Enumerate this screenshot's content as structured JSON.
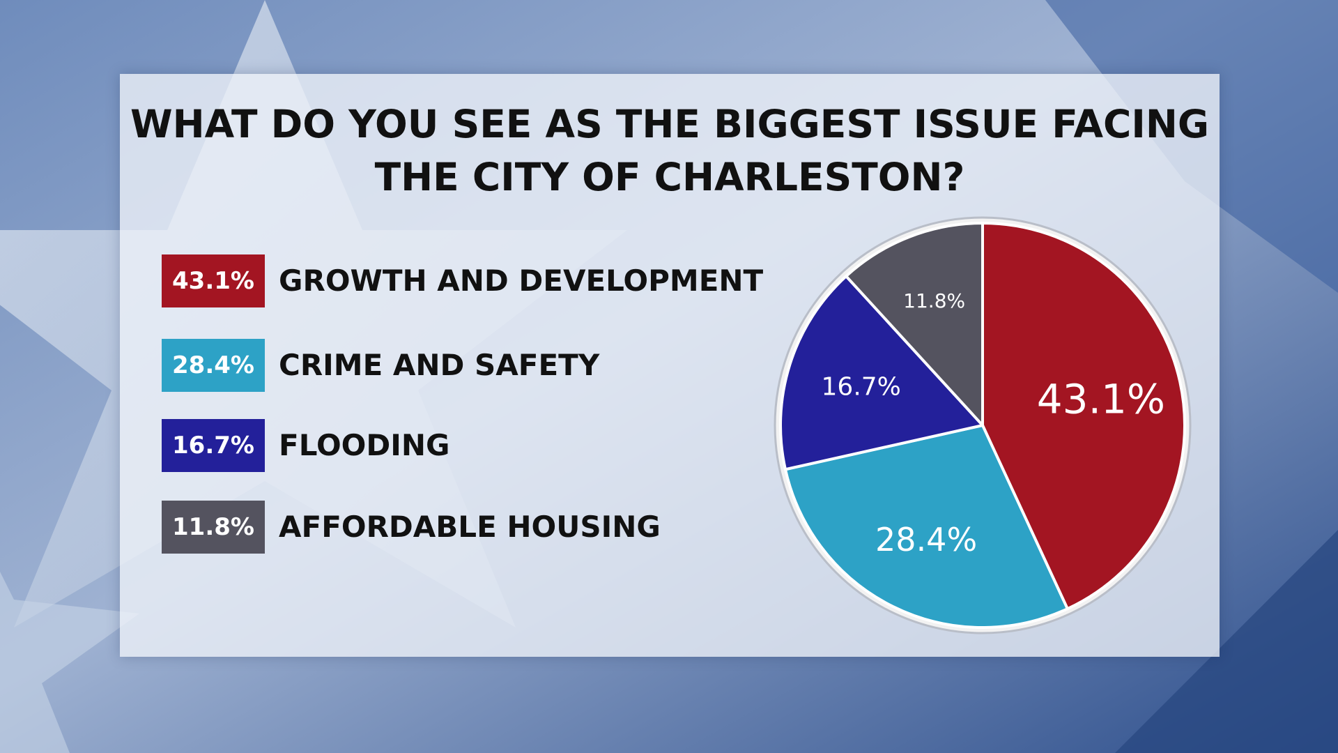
{
  "chart_data": {
    "type": "pie",
    "title": "WHAT DO YOU SEE AS THE BIGGEST ISSUE FACING THE CITY OF CHARLESTON?",
    "title_lines": [
      "WHAT DO YOU SEE AS THE BIGGEST ISSUE FACING",
      "THE CITY OF CHARLESTON?"
    ],
    "slices": [
      {
        "label": "GROWTH AND DEVELOPMENT",
        "value": 43.1,
        "badge": "43.1%",
        "color": "#a31522"
      },
      {
        "label": "CRIME AND SAFETY",
        "value": 28.4,
        "badge": "28.4%",
        "color": "#2da2c6"
      },
      {
        "label": "FLOODING",
        "value": 16.7,
        "badge": "16.7%",
        "color": "#23209a"
      },
      {
        "label": "AFFORDABLE HOUSING",
        "value": 11.8,
        "badge": "11.8%",
        "color": "#54535f"
      }
    ],
    "start_angle_deg": 0,
    "direction": "clockwise",
    "legend_position": "left"
  }
}
